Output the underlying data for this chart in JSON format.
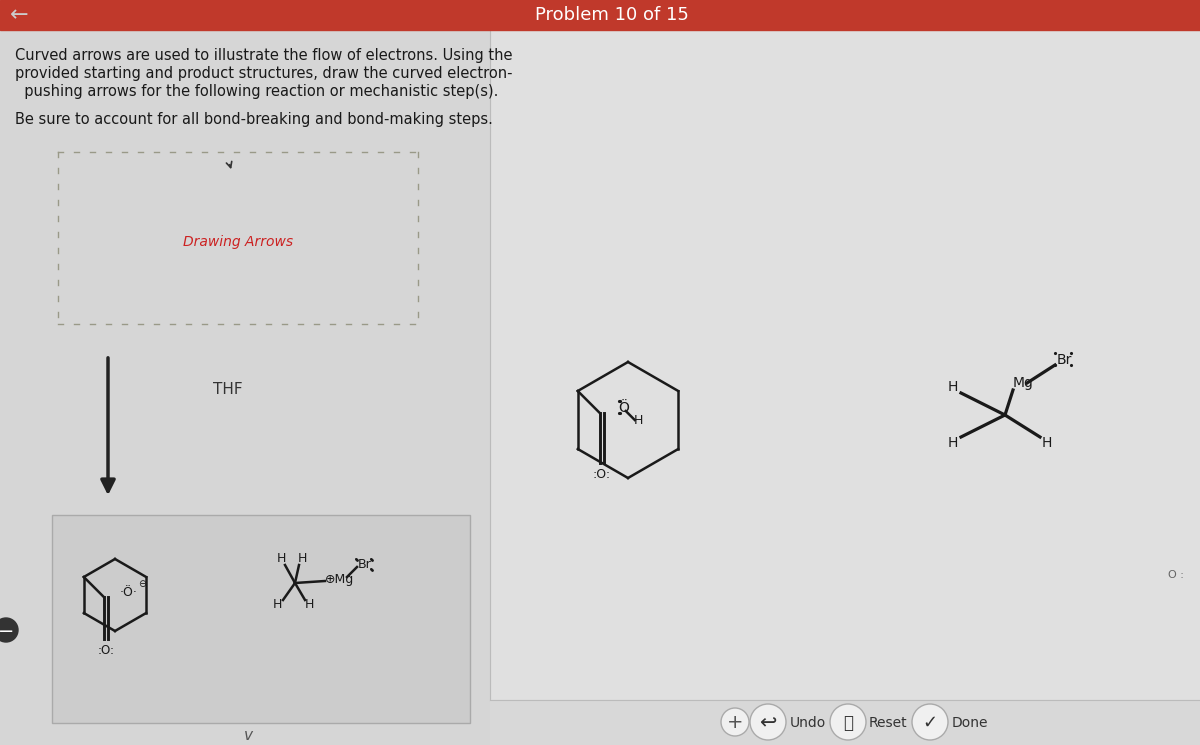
{
  "bg_left": "#d6d6d6",
  "bg_right": "#e0e0e0",
  "header_color": "#c0392b",
  "header_text": "Problem 10 of 15",
  "bond_color": "#1a1a1a",
  "text_color": "#1a1a1a",
  "red_label_color": "#cc2222",
  "instruction1": "Curved arrows are used to illustrate the flow of electrons. Using the",
  "instruction2": "provided starting and product structures, draw the curved electron-",
  "instruction3": "  pushing arrows for the following reaction or mechanistic step(s).",
  "instruction4": "Be sure to account for all bond-breaking and bond-making steps.",
  "thf": "THF",
  "drawing_arrows": "Drawing Arrows"
}
